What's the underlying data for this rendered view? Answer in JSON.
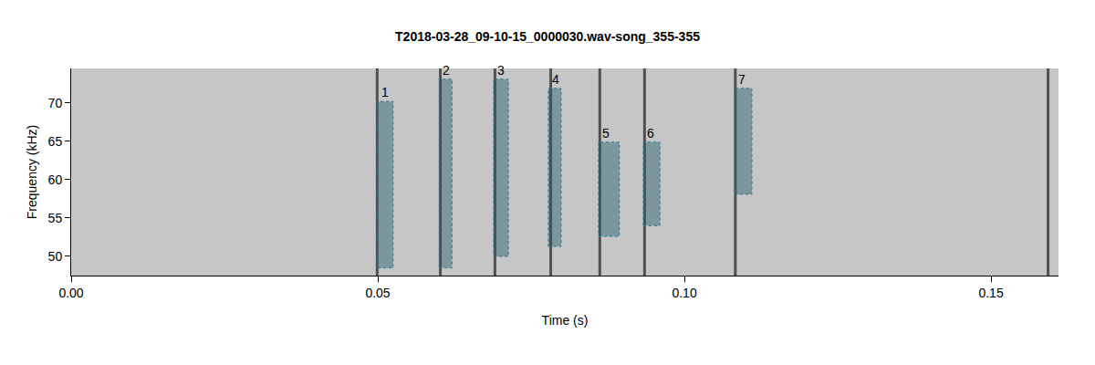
{
  "chart_data": {
    "type": "spectrogram",
    "title": "T2018-03-28_09-10-15_0000030.wav-song_355-355",
    "x_label": "Time (s)",
    "y_label": "Frequency (kHz)",
    "xlim": [
      0,
      0.161
    ],
    "xticks": [
      {
        "value": 0,
        "label": "0.00"
      },
      {
        "value": 0.05,
        "label": "0.05"
      },
      {
        "value": 0.1,
        "label": "0.10"
      },
      {
        "value": 0.15,
        "label": "0.15"
      }
    ],
    "ylim": [
      47.5,
      74.5
    ],
    "yticks": [
      50,
      55,
      60,
      65,
      70
    ],
    "grid": false,
    "color": "#2e7d8c",
    "clicks": [
      0.0499,
      0.0602,
      0.0691,
      0.0782,
      0.0862,
      0.0935,
      0.1083,
      0.1593
    ],
    "syllables": [
      {
        "label": "1",
        "start": 0.05,
        "end": 0.0525,
        "low": 48.5,
        "high": 70.2
      },
      {
        "label": "2",
        "start": 0.06,
        "end": 0.0621,
        "low": 48.5,
        "high": 73.1
      },
      {
        "label": "3",
        "start": 0.0689,
        "end": 0.0713,
        "low": 50.0,
        "high": 73.1
      },
      {
        "label": "4",
        "start": 0.0778,
        "end": 0.0799,
        "low": 51.3,
        "high": 71.9
      },
      {
        "label": "5",
        "start": 0.086,
        "end": 0.0894,
        "low": 52.6,
        "high": 64.9
      },
      {
        "label": "6",
        "start": 0.0933,
        "end": 0.096,
        "low": 54.0,
        "high": 64.9
      },
      {
        "label": "7",
        "start": 0.1082,
        "end": 0.111,
        "low": 58.1,
        "high": 71.9
      }
    ]
  }
}
